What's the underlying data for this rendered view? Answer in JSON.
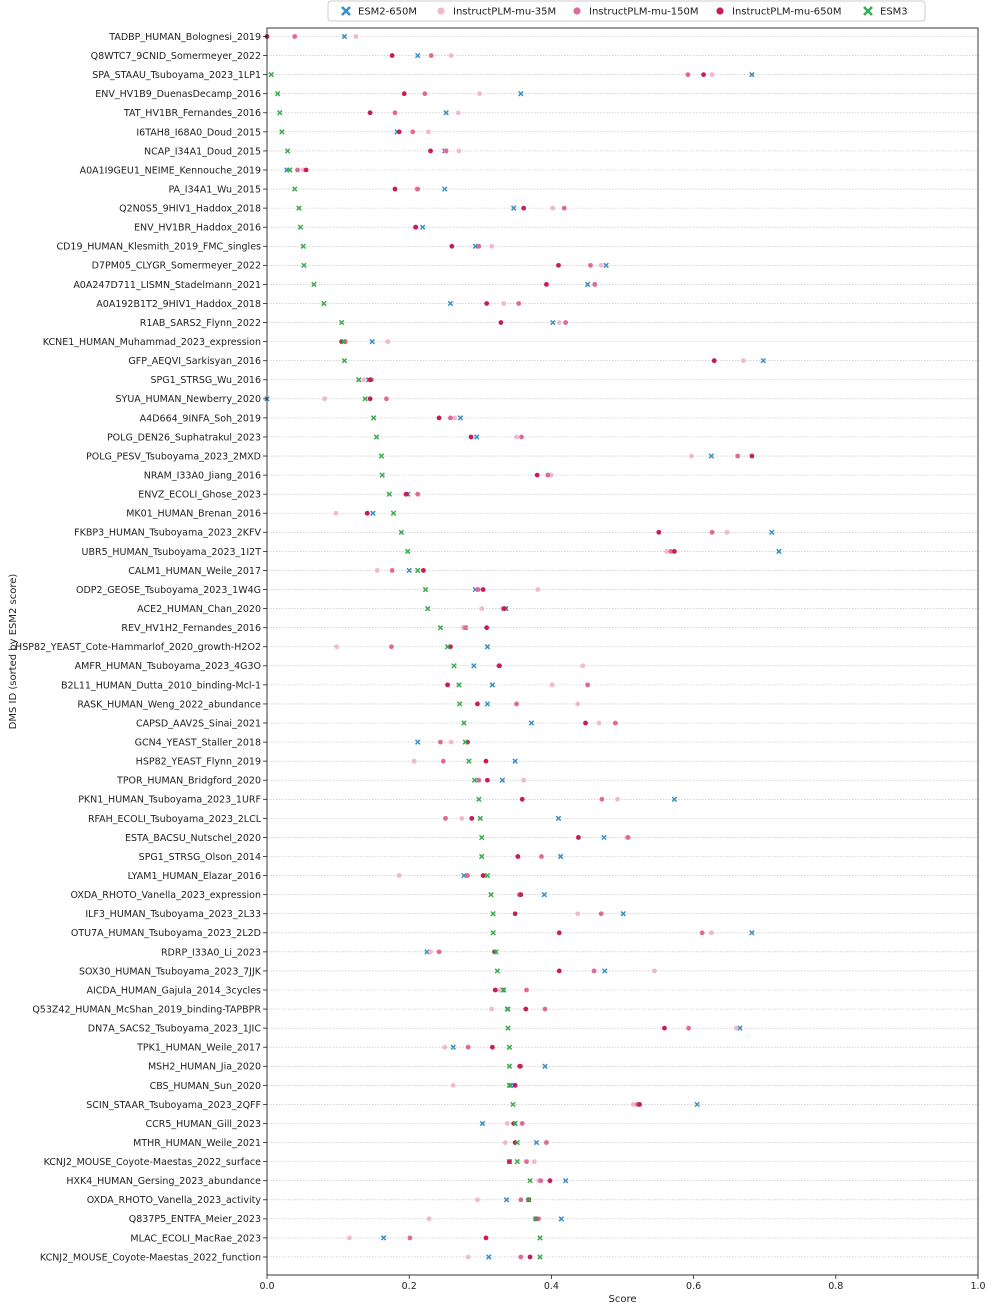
{
  "chart_data": {
    "type": "scatter",
    "xlabel": "Score",
    "ylabel": "DMS ID (sorted by ESM2 score)",
    "xlim": [
      0.0,
      1.0
    ],
    "xticks": [
      "0.0",
      "0.2",
      "0.4",
      "0.6",
      "0.8",
      "1.0"
    ],
    "grid": "horizontal dotted",
    "legend_position": "top",
    "series": [
      {
        "name": "ESM2-650M",
        "marker": "x",
        "color": "#3a8fc4"
      },
      {
        "name": "InstructPLM-mu-35M",
        "marker": "o",
        "color": "#f2b8cf"
      },
      {
        "name": "InstructPLM-mu-150M",
        "marker": "o",
        "color": "#e0689b"
      },
      {
        "name": "InstructPLM-mu-650M",
        "marker": "o",
        "color": "#c41e5a"
      },
      {
        "name": "ESM3",
        "marker": "x",
        "color": "#3bab4e"
      }
    ],
    "categories": [
      "TADBP_HUMAN_Bolognesi_2019",
      "Q8WTC7_9CNID_Somermeyer_2022",
      "SPA_STAAU_Tsuboyama_2023_1LP1",
      "ENV_HV1B9_DuenasDecamp_2016",
      "TAT_HV1BR_Fernandes_2016",
      "I6TAH8_I68A0_Doud_2015",
      "NCAP_I34A1_Doud_2015",
      "A0A1I9GEU1_NEIME_Kennouche_2019",
      "PA_I34A1_Wu_2015",
      "Q2N0S5_9HIV1_Haddox_2018",
      "ENV_HV1BR_Haddox_2016",
      "CD19_HUMAN_Klesmith_2019_FMC_singles",
      "D7PM05_CLYGR_Somermeyer_2022",
      "A0A247D711_LISMN_Stadelmann_2021",
      "A0A192B1T2_9HIV1_Haddox_2018",
      "R1AB_SARS2_Flynn_2022",
      "KCNE1_HUMAN_Muhammad_2023_expression",
      "GFP_AEQVI_Sarkisyan_2016",
      "SPG1_STRSG_Wu_2016",
      "SYUA_HUMAN_Newberry_2020",
      "A4D664_9INFA_Soh_2019",
      "POLG_DEN26_Suphatrakul_2023",
      "POLG_PESV_Tsuboyama_2023_2MXD",
      "NRAM_I33A0_Jiang_2016",
      "ENVZ_ECOLI_Ghose_2023",
      "MK01_HUMAN_Brenan_2016",
      "FKBP3_HUMAN_Tsuboyama_2023_2KFV",
      "UBR5_HUMAN_Tsuboyama_2023_1I2T",
      "CALM1_HUMAN_Weile_2017",
      "ODP2_GEOSE_Tsuboyama_2023_1W4G",
      "ACE2_HUMAN_Chan_2020",
      "REV_HV1H2_Fernandes_2016",
      "HSP82_YEAST_Cote-Hammarlof_2020_growth-H2O2",
      "AMFR_HUMAN_Tsuboyama_2023_4G3O",
      "B2L11_HUMAN_Dutta_2010_binding-Mcl-1",
      "RASK_HUMAN_Weng_2022_abundance",
      "CAPSD_AAV2S_Sinai_2021",
      "GCN4_YEAST_Staller_2018",
      "HSP82_YEAST_Flynn_2019",
      "TPOR_HUMAN_Bridgford_2020",
      "PKN1_HUMAN_Tsuboyama_2023_1URF",
      "RFAH_ECOLI_Tsuboyama_2023_2LCL",
      "ESTA_BACSU_Nutschel_2020",
      "SPG1_STRSG_Olson_2014",
      "LYAM1_HUMAN_Elazar_2016",
      "OXDA_RHOTO_Vanella_2023_expression",
      "ILF3_HUMAN_Tsuboyama_2023_2L33",
      "OTU7A_HUMAN_Tsuboyama_2023_2L2D",
      "RDRP_I33A0_Li_2023",
      "SOX30_HUMAN_Tsuboyama_2023_7JJK",
      "AICDA_HUMAN_Gajula_2014_3cycles",
      "Q53Z42_HUMAN_McShan_2019_binding-TAPBPR",
      "DN7A_SACS2_Tsuboyama_2023_1JIC",
      "TPK1_HUMAN_Weile_2017",
      "MSH2_HUMAN_Jia_2020",
      "CBS_HUMAN_Sun_2020",
      "SCIN_STAAR_Tsuboyama_2023_2QFF",
      "CCR5_HUMAN_Gill_2023",
      "MTHR_HUMAN_Weile_2021",
      "KCNJ2_MOUSE_Coyote-Maestas_2022_surface",
      "HXK4_HUMAN_Gersing_2023_abundance",
      "OXDA_RHOTO_Vanella_2023_activity",
      "Q837P5_ENTFA_Meier_2023",
      "MLAC_ECOLI_MacRae_2023",
      "KCNJ2_MOUSE_Coyote-Maestas_2022_function"
    ],
    "values": {
      "ESM2-650M": [
        0.109,
        0.212,
        0.682,
        0.357,
        0.252,
        0.183,
        0.25,
        0.028,
        0.25,
        0.347,
        0.219,
        0.293,
        0.477,
        0.451,
        0.258,
        0.402,
        0.148,
        0.698,
        0.143,
        0.0,
        0.272,
        0.295,
        0.625,
        0.397,
        0.198,
        0.149,
        0.71,
        0.72,
        0.2,
        0.293,
        0.336,
        0.279,
        0.31,
        0.291,
        0.317,
        0.31,
        0.372,
        0.212,
        0.349,
        0.331,
        0.573,
        0.41,
        0.474,
        0.413,
        0.277,
        0.39,
        0.501,
        0.682,
        0.225,
        0.475,
        0.331,
        0.338,
        0.665,
        0.262,
        0.391,
        0.343,
        0.605,
        0.303,
        0.379,
        0.341,
        0.42,
        0.337,
        0.414,
        0.164,
        0.312
      ],
      "InstructPLM-mu-35M": [
        0.125,
        0.259,
        0.626,
        0.299,
        0.269,
        0.227,
        0.27,
        0.051,
        0.21,
        0.402,
        0.21,
        0.316,
        0.47,
        0.461,
        0.333,
        0.411,
        0.17,
        0.67,
        0.136,
        0.081,
        0.264,
        0.351,
        0.597,
        0.4,
        0.194,
        0.097,
        0.647,
        0.562,
        0.155,
        0.381,
        0.302,
        0.276,
        0.098,
        0.444,
        0.401,
        0.437,
        0.467,
        0.259,
        0.207,
        0.361,
        0.493,
        0.274,
        0.506,
        0.352,
        0.186,
        0.357,
        0.437,
        0.625,
        0.23,
        0.545,
        0.327,
        0.316,
        0.66,
        0.25,
        0.358,
        0.262,
        0.515,
        0.338,
        0.335,
        0.376,
        0.382,
        0.296,
        0.228,
        0.116,
        0.283
      ],
      "InstructPLM-mu-150M": [
        0.039,
        0.231,
        0.592,
        0.222,
        0.18,
        0.205,
        0.252,
        0.043,
        0.212,
        0.418,
        0.209,
        0.298,
        0.455,
        0.461,
        0.354,
        0.42,
        0.11,
        0.629,
        0.147,
        0.168,
        0.258,
        0.358,
        0.662,
        0.395,
        0.212,
        0.141,
        0.626,
        0.568,
        0.176,
        0.297,
        0.332,
        0.279,
        0.175,
        0.326,
        0.451,
        0.351,
        0.49,
        0.244,
        0.248,
        0.298,
        0.471,
        0.251,
        0.508,
        0.386,
        0.282,
        0.355,
        0.47,
        0.612,
        0.242,
        0.46,
        0.365,
        0.391,
        0.593,
        0.283,
        0.355,
        0.349,
        0.521,
        0.359,
        0.393,
        0.365,
        0.385,
        0.357,
        0.382,
        0.201,
        0.357
      ],
      "InstructPLM-mu-650M": [
        0.0,
        0.176,
        0.614,
        0.193,
        0.145,
        0.186,
        0.23,
        0.055,
        0.18,
        0.361,
        0.209,
        0.26,
        0.41,
        0.393,
        0.309,
        0.329,
        0.105,
        0.629,
        0.145,
        0.145,
        0.242,
        0.287,
        0.682,
        0.38,
        0.196,
        0.141,
        0.551,
        0.573,
        0.22,
        0.304,
        0.334,
        0.309,
        0.258,
        0.327,
        0.254,
        0.296,
        0.448,
        0.282,
        0.308,
        0.31,
        0.359,
        0.288,
        0.438,
        0.353,
        0.304,
        0.357,
        0.349,
        0.411,
        0.32,
        0.411,
        0.321,
        0.364,
        0.559,
        0.317,
        0.356,
        0.349,
        0.524,
        0.347,
        0.349,
        0.341,
        0.398,
        0.368,
        0.378,
        0.308,
        0.37
      ],
      "ESM3": [
        null,
        null,
        0.006,
        0.015,
        0.018,
        0.021,
        0.029,
        0.032,
        0.039,
        0.045,
        0.047,
        0.051,
        0.052,
        0.066,
        0.08,
        0.105,
        0.108,
        0.109,
        0.129,
        0.138,
        0.15,
        0.154,
        0.161,
        0.162,
        0.172,
        0.178,
        0.189,
        0.198,
        0.212,
        0.223,
        0.226,
        0.244,
        0.254,
        0.263,
        0.27,
        0.271,
        0.277,
        0.279,
        0.284,
        0.292,
        0.298,
        0.3,
        0.302,
        0.302,
        0.31,
        0.315,
        0.318,
        0.318,
        0.322,
        0.324,
        0.333,
        0.339,
        0.339,
        0.341,
        0.341,
        0.341,
        0.346,
        0.349,
        0.352,
        0.352,
        0.37,
        0.368,
        0.378,
        0.384,
        0.384
      ]
    }
  }
}
